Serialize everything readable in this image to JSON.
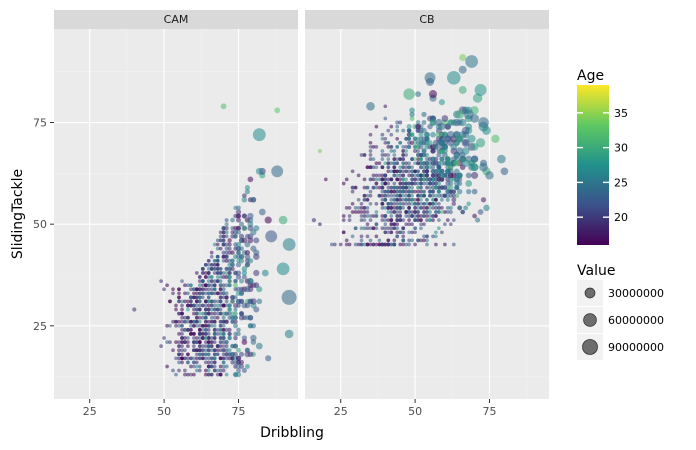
{
  "chart_data": {
    "type": "scatter",
    "xlabel": "Dribbling",
    "ylabel": "SlidingTackle",
    "xlim": [
      13,
      95
    ],
    "ylim": [
      7,
      98
    ],
    "x_ticks": [
      25,
      50,
      75
    ],
    "y_ticks": [
      25,
      50,
      75
    ],
    "grid": true,
    "facets": [
      "CAM",
      "CB"
    ],
    "color_legend": {
      "title": "Age",
      "variable": "Age",
      "range": [
        16,
        39
      ],
      "breaks": [
        20,
        25,
        30,
        35
      ],
      "palette": [
        "#440154",
        "#3b528b",
        "#21918c",
        "#5ec962",
        "#fde725"
      ]
    },
    "size_legend": {
      "title": "Value",
      "variable": "Value",
      "breaks": [
        30000000,
        60000000,
        90000000
      ],
      "labels": [
        "30000000",
        "60000000",
        "90000000"
      ]
    },
    "point_alpha": 0.55,
    "point_counts": {
      "CAM": 900,
      "CB": 1100
    },
    "data_summary": {
      "CAM": {
        "x_range": [
          38,
          92
        ],
        "y_range": [
          13,
          79
        ],
        "center": [
          68,
          42
        ]
      },
      "CB": {
        "x_range": [
          15,
          80
        ],
        "y_range": [
          45,
          91
        ],
        "center": [
          52,
          63
        ]
      }
    },
    "notable_points": [
      {
        "facet": "CAM",
        "x": 92,
        "y": 32,
        "age": 24,
        "value": 90000000
      },
      {
        "facet": "CAM",
        "x": 92,
        "y": 45,
        "age": 26,
        "value": 60000000
      },
      {
        "facet": "CAM",
        "x": 90,
        "y": 39,
        "age": 27,
        "value": 60000000
      },
      {
        "facet": "CAM",
        "x": 82,
        "y": 72,
        "age": 27,
        "value": 60000000
      },
      {
        "facet": "CAM",
        "x": 88,
        "y": 63,
        "age": 24,
        "value": 50000000
      },
      {
        "facet": "CAM",
        "x": 86,
        "y": 47,
        "age": 22,
        "value": 50000000
      },
      {
        "facet": "CAM",
        "x": 92,
        "y": 23,
        "age": 26,
        "value": 20000000
      },
      {
        "facet": "CAM",
        "x": 90,
        "y": 51,
        "age": 30,
        "value": 20000000
      },
      {
        "facet": "CAM",
        "x": 70,
        "y": 79,
        "age": 32,
        "value": 5000000
      },
      {
        "facet": "CAM",
        "x": 88,
        "y": 78,
        "age": 33,
        "value": 5000000
      },
      {
        "facet": "CAM",
        "x": 40,
        "y": 29,
        "age": 19,
        "value": 1000000
      },
      {
        "facet": "CB",
        "x": 63,
        "y": 86,
        "age": 27,
        "value": 70000000
      },
      {
        "facet": "CB",
        "x": 69,
        "y": 90,
        "age": 25,
        "value": 60000000
      },
      {
        "facet": "CB",
        "x": 72,
        "y": 83,
        "age": 28,
        "value": 50000000
      },
      {
        "facet": "CB",
        "x": 48,
        "y": 82,
        "age": 30,
        "value": 45000000
      },
      {
        "facet": "CB",
        "x": 55,
        "y": 86,
        "age": 24,
        "value": 40000000
      },
      {
        "facet": "CB",
        "x": 35,
        "y": 79,
        "age": 24,
        "value": 20000000
      },
      {
        "facet": "CB",
        "x": 66,
        "y": 91,
        "age": 34,
        "value": 10000000
      },
      {
        "facet": "CB",
        "x": 74,
        "y": 73,
        "age": 27,
        "value": 20000000
      },
      {
        "facet": "CB",
        "x": 16,
        "y": 51,
        "age": 19,
        "value": 1000000
      },
      {
        "facet": "CB",
        "x": 18,
        "y": 68,
        "age": 34,
        "value": 1000000
      }
    ]
  }
}
